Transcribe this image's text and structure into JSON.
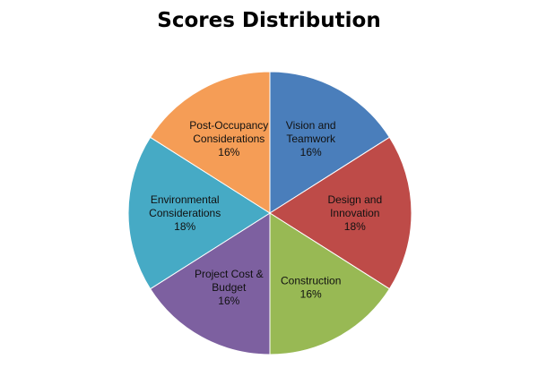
{
  "chart_data": {
    "type": "pie",
    "title": "Scores Distribution",
    "slices": [
      {
        "label_lines": [
          "Vision and",
          "Teamwork",
          "16%"
        ],
        "name": "Vision and Teamwork",
        "value": 16,
        "color": "#4A7EBB"
      },
      {
        "label_lines": [
          "Design and",
          "Innovation",
          "18%"
        ],
        "name": "Design and Innovation",
        "value": 18,
        "color": "#BE4B48"
      },
      {
        "label_lines": [
          "Construction",
          "16%"
        ],
        "name": "Construction",
        "value": 16,
        "color": "#98B954"
      },
      {
        "label_lines": [
          "Project Cost &",
          "Budget",
          "16%"
        ],
        "name": "Project Cost & Budget",
        "value": 16,
        "color": "#7D60A0"
      },
      {
        "label_lines": [
          "Environmental",
          "Considerations",
          "18%"
        ],
        "name": "Environmental Considerations",
        "value": 18,
        "color": "#46AAC5"
      },
      {
        "label_lines": [
          "Post-Occupancy",
          "Considerations",
          "16%"
        ],
        "name": "Post-Occupancy Considerations",
        "value": 16,
        "color": "#F59D56"
      }
    ],
    "legend": "none",
    "data_labels": "inside"
  }
}
